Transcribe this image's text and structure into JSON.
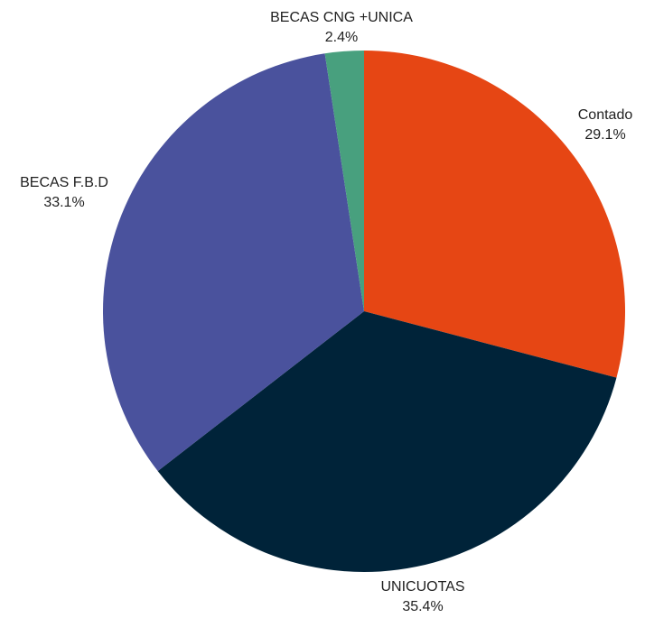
{
  "chart_data": {
    "type": "pie",
    "slices": [
      {
        "label": "Contado",
        "value": 29.1,
        "value_label": "29.1%",
        "color": "#E64614"
      },
      {
        "label": "UNICUOTAS",
        "value": 35.4,
        "value_label": "35.4%",
        "color": "#002339"
      },
      {
        "label": "BECAS F.B.D",
        "value": 33.1,
        "value_label": "33.1%",
        "color": "#4A529D"
      },
      {
        "label": "BECAS CNG +UNICA",
        "value": 2.4,
        "value_label": "2.4%",
        "color": "#48A07E"
      }
    ],
    "start_angle": "12 o'clock",
    "direction": "clockwise",
    "legend": "none",
    "labels": "outside"
  }
}
